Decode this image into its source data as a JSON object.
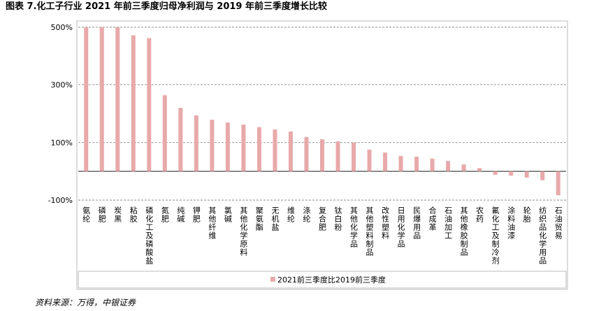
{
  "chart_data": {
    "type": "bar",
    "title": "图表 7.化工子行业 2021 年前三季度归母净利润与 2019 年前三季度增长比较",
    "source": "资料来源：万得，中银证券",
    "categories": [
      "氨纶",
      "磷肥",
      "炭黑",
      "粘胶",
      "磷化工及磷酸盐",
      "氮肥",
      "纯碱",
      "钾肥",
      "其他纤维",
      "氯碱",
      "其他化学原料",
      "聚氨酯",
      "无机盐",
      "维纶",
      "涤纶",
      "复合肥",
      "钛白粉",
      "其他化学品",
      "其他塑料制品",
      "改性塑料",
      "日用化学品",
      "民爆用品",
      "合成革",
      "石油加工",
      "其他橡胶制品",
      "农药",
      "氟化工及制冷剂",
      "涂料油漆",
      "轮胎",
      "纺织品化学用品",
      "石油贸易"
    ],
    "series": [
      {
        "name": "2021前三季度比2019前三季度",
        "color": "#e8a9aa",
        "values": [
          500,
          500,
          500,
          472,
          462,
          264,
          220,
          194,
          179,
          169,
          162,
          153,
          145,
          138,
          119,
          111,
          104,
          99,
          75,
          65,
          53,
          51,
          44,
          36,
          24,
          11,
          -12,
          -15,
          -22,
          -31,
          -83
        ]
      }
    ],
    "ylim": [
      -100,
      500
    ],
    "yticks": [
      {
        "value": -100,
        "label": "-100%"
      },
      {
        "value": 100,
        "label": "100%"
      },
      {
        "value": 300,
        "label": "300%"
      },
      {
        "value": 500,
        "label": "500%"
      }
    ],
    "grid": true
  }
}
